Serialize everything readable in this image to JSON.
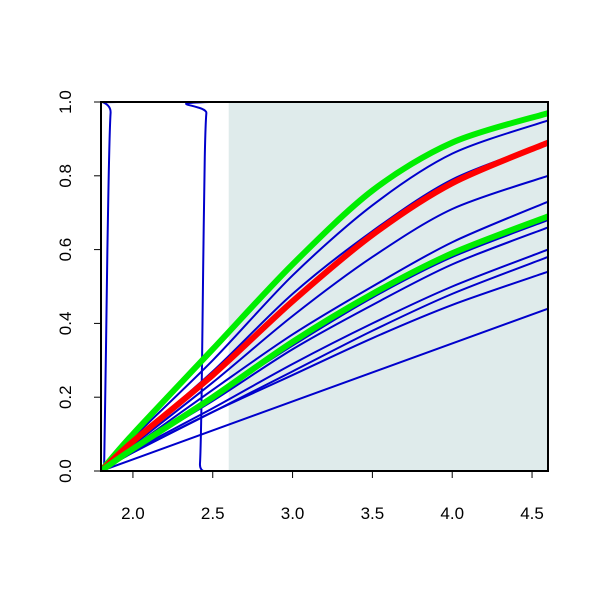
{
  "chart_data": {
    "type": "line",
    "title": "",
    "xlabel": "",
    "ylabel": "",
    "xlim": [
      1.8,
      4.6
    ],
    "ylim": [
      0.0,
      1.0
    ],
    "x_ticks": [
      2.0,
      2.5,
      3.0,
      3.5,
      4.0,
      4.5
    ],
    "x_tick_labels": [
      "2.0",
      "2.5",
      "3.0",
      "3.5",
      "4.0",
      "4.5"
    ],
    "y_ticks": [
      0.0,
      0.2,
      0.4,
      0.6,
      0.8,
      1.0
    ],
    "y_tick_labels": [
      "0.0",
      "0.2",
      "0.4",
      "0.6",
      "0.8",
      "1.0"
    ],
    "grid": false,
    "legend": "none",
    "shaded_region": {
      "x_from": 2.6,
      "x_to": 4.6,
      "color": "#dfebeb"
    },
    "colors": {
      "blue": "#0000cc",
      "red": "#ff0000",
      "green": "#00ee00",
      "axis": "#000000"
    },
    "series": [
      {
        "color": "#0000cc",
        "width": 2,
        "points": [
          [
            1.8,
            0.0
          ],
          [
            1.82,
            0.02
          ],
          [
            1.84,
            0.6
          ],
          [
            1.86,
            0.97
          ],
          [
            1.9,
            1.0
          ],
          [
            4.6,
            1.0
          ]
        ]
      },
      {
        "color": "#0000cc",
        "width": 2,
        "points": [
          [
            1.8,
            0.0
          ],
          [
            2.4,
            0.0
          ],
          [
            2.42,
            0.02
          ],
          [
            2.43,
            0.2
          ],
          [
            2.44,
            0.55
          ],
          [
            2.45,
            0.85
          ],
          [
            2.46,
            0.97
          ],
          [
            2.48,
            1.0
          ],
          [
            4.6,
            1.0
          ]
        ]
      },
      {
        "color": "#0000cc",
        "width": 2,
        "points": [
          [
            1.8,
            0.0
          ],
          [
            2.0,
            0.09
          ],
          [
            2.5,
            0.3
          ],
          [
            3.0,
            0.53
          ],
          [
            3.5,
            0.72
          ],
          [
            4.0,
            0.86
          ],
          [
            4.6,
            0.95
          ]
        ]
      },
      {
        "color": "#0000cc",
        "width": 2,
        "points": [
          [
            1.8,
            0.0
          ],
          [
            2.0,
            0.08
          ],
          [
            2.5,
            0.27
          ],
          [
            3.0,
            0.48
          ],
          [
            3.5,
            0.65
          ],
          [
            4.0,
            0.79
          ],
          [
            4.6,
            0.89
          ]
        ]
      },
      {
        "color": "#0000cc",
        "width": 2,
        "points": [
          [
            1.8,
            0.0
          ],
          [
            2.0,
            0.07
          ],
          [
            2.5,
            0.24
          ],
          [
            3.0,
            0.42
          ],
          [
            3.5,
            0.58
          ],
          [
            4.0,
            0.71
          ],
          [
            4.6,
            0.8
          ]
        ]
      },
      {
        "color": "#0000cc",
        "width": 2,
        "points": [
          [
            1.8,
            0.0
          ],
          [
            2.0,
            0.065
          ],
          [
            2.5,
            0.22
          ],
          [
            3.0,
            0.37
          ],
          [
            3.5,
            0.5
          ],
          [
            4.0,
            0.62
          ],
          [
            4.6,
            0.73
          ]
        ]
      },
      {
        "color": "#0000cc",
        "width": 2,
        "points": [
          [
            1.8,
            0.0
          ],
          [
            2.0,
            0.06
          ],
          [
            2.5,
            0.2
          ],
          [
            3.0,
            0.34
          ],
          [
            3.5,
            0.47
          ],
          [
            4.0,
            0.58
          ],
          [
            4.6,
            0.68
          ]
        ]
      },
      {
        "color": "#0000cc",
        "width": 2,
        "points": [
          [
            1.8,
            0.0
          ],
          [
            2.0,
            0.06
          ],
          [
            2.5,
            0.19
          ],
          [
            3.0,
            0.33
          ],
          [
            3.5,
            0.45
          ],
          [
            4.0,
            0.56
          ],
          [
            4.6,
            0.66
          ]
        ]
      },
      {
        "color": "#0000cc",
        "width": 2,
        "points": [
          [
            1.8,
            0.0
          ],
          [
            2.0,
            0.055
          ],
          [
            2.5,
            0.17
          ],
          [
            3.0,
            0.29
          ],
          [
            3.5,
            0.4
          ],
          [
            4.0,
            0.5
          ],
          [
            4.6,
            0.6
          ]
        ]
      },
      {
        "color": "#0000cc",
        "width": 2,
        "points": [
          [
            1.8,
            0.0
          ],
          [
            2.0,
            0.05
          ],
          [
            2.5,
            0.16
          ],
          [
            3.0,
            0.27
          ],
          [
            3.5,
            0.38
          ],
          [
            4.0,
            0.48
          ],
          [
            4.6,
            0.58
          ]
        ]
      },
      {
        "color": "#0000cc",
        "width": 2,
        "points": [
          [
            1.8,
            0.0
          ],
          [
            2.0,
            0.05
          ],
          [
            2.5,
            0.16
          ],
          [
            3.0,
            0.26
          ],
          [
            3.5,
            0.36
          ],
          [
            4.0,
            0.45
          ],
          [
            4.6,
            0.54
          ]
        ]
      },
      {
        "color": "#0000cc",
        "width": 2,
        "points": [
          [
            1.8,
            0.0
          ],
          [
            4.6,
            0.44
          ]
        ]
      },
      {
        "color": "#00ee00",
        "width": 6,
        "points": [
          [
            1.8,
            0.0
          ],
          [
            2.0,
            0.1
          ],
          [
            2.5,
            0.33
          ],
          [
            3.0,
            0.56
          ],
          [
            3.5,
            0.76
          ],
          [
            4.0,
            0.89
          ],
          [
            4.6,
            0.97
          ]
        ]
      },
      {
        "color": "#ff0000",
        "width": 6,
        "points": [
          [
            1.8,
            0.0
          ],
          [
            2.0,
            0.08
          ],
          [
            2.5,
            0.26
          ],
          [
            3.0,
            0.46
          ],
          [
            3.5,
            0.64
          ],
          [
            4.0,
            0.78
          ],
          [
            4.6,
            0.89
          ]
        ]
      },
      {
        "color": "#00ee00",
        "width": 6,
        "points": [
          [
            1.8,
            0.0
          ],
          [
            2.0,
            0.06
          ],
          [
            2.5,
            0.2
          ],
          [
            3.0,
            0.35
          ],
          [
            3.5,
            0.48
          ],
          [
            4.0,
            0.59
          ],
          [
            4.6,
            0.69
          ]
        ]
      }
    ]
  }
}
